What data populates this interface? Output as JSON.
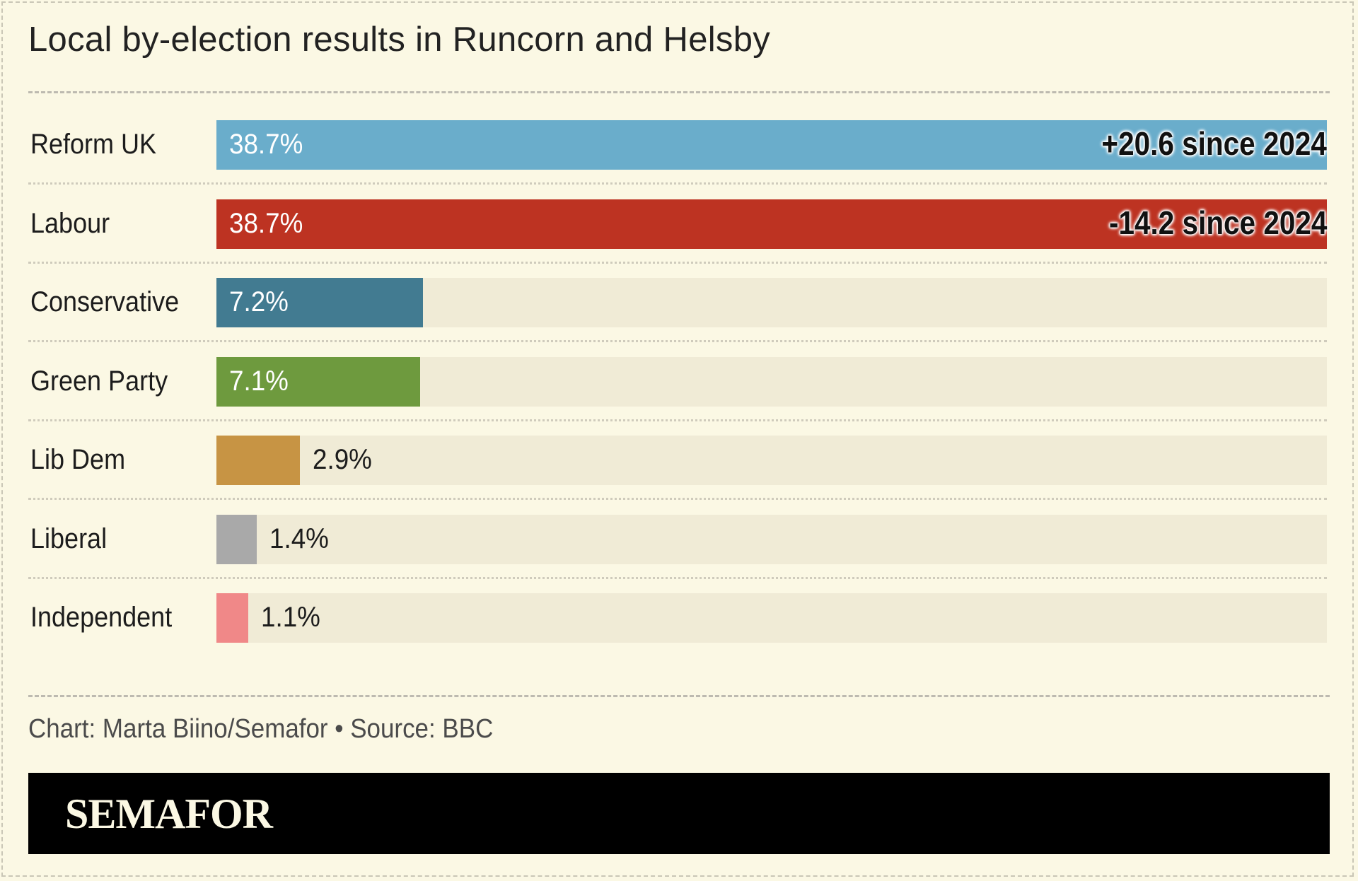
{
  "chart_data": {
    "type": "bar",
    "orientation": "horizontal",
    "title": "Local by-election results in Runcorn and Helsby",
    "categories": [
      "Reform UK",
      "Labour",
      "Conservative",
      "Green Party",
      "Lib Dem",
      "Liberal",
      "Independent"
    ],
    "values": [
      38.7,
      38.7,
      7.2,
      7.1,
      2.9,
      1.4,
      1.1
    ],
    "value_labels": [
      "38.7%",
      "38.7%",
      "7.2%",
      "7.1%",
      "2.9%",
      "1.4%",
      "1.1%"
    ],
    "colors": [
      "#6aadcb",
      "#bd3322",
      "#427b91",
      "#6e9a3e",
      "#c79444",
      "#a9a9a9",
      "#f08888"
    ],
    "annotations": [
      {
        "category": "Reform UK",
        "text": "+20.6 since 2024"
      },
      {
        "category": "Labour",
        "text": "-14.2 since 2024"
      }
    ],
    "xlim": [
      0,
      38.7
    ],
    "grid": false,
    "legend": "none"
  },
  "footer": {
    "credit": "Chart: Marta Biino/Semafor • Source: BBC",
    "brand": "SEMAFOR"
  }
}
